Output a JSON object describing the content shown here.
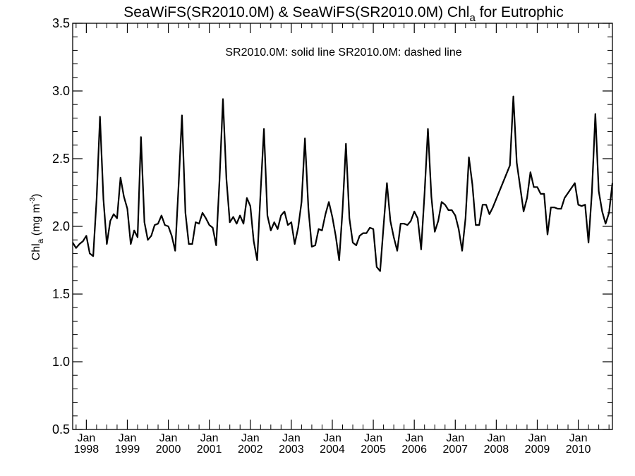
{
  "chart_data": {
    "type": "line",
    "title": "SeaWiFS(SR2010.0M) & SeaWiFS(SR2010.0M)  Chl",
    "title_subscript": "a",
    "title_suffix": " for Eutrophic",
    "legend_text": "SR2010.0M: solid line   SR2010.0M: dashed line",
    "ylabel": "Chl",
    "ylabel_subscript": "a",
    "ylabel_unit": " (mg m",
    "ylabel_unit_sup": "-3",
    "ylabel_unit_end": ")",
    "ylim": [
      0.5,
      3.5
    ],
    "yticks": [
      "0.5",
      "1.0",
      "1.5",
      "2.0",
      "2.5",
      "3.0",
      "3.5"
    ],
    "xlim": [
      "1997-09",
      "2010-11"
    ],
    "xticks": [
      {
        "month": "Jan",
        "year": "1998"
      },
      {
        "month": "Jan",
        "year": "1999"
      },
      {
        "month": "Jan",
        "year": "2000"
      },
      {
        "month": "Jan",
        "year": "2001"
      },
      {
        "month": "Jan",
        "year": "2002"
      },
      {
        "month": "Jan",
        "year": "2003"
      },
      {
        "month": "Jan",
        "year": "2004"
      },
      {
        "month": "Jan",
        "year": "2005"
      },
      {
        "month": "Jan",
        "year": "2006"
      },
      {
        "month": "Jan",
        "year": "2007"
      },
      {
        "month": "Jan",
        "year": "2008"
      },
      {
        "month": "Jan",
        "year": "2009"
      },
      {
        "month": "Jan",
        "year": "2010"
      }
    ],
    "grid": false,
    "series": [
      {
        "name": "SR2010.0M",
        "style": "solid",
        "x": [
          "1997-09",
          "1997-10",
          "1997-11",
          "1997-12",
          "1998-01",
          "1998-02",
          "1998-03",
          "1998-04",
          "1998-05",
          "1998-06",
          "1998-07",
          "1998-08",
          "1998-09",
          "1998-10",
          "1998-11",
          "1998-12",
          "1999-01",
          "1999-02",
          "1999-03",
          "1999-04",
          "1999-05",
          "1999-06",
          "1999-07",
          "1999-08",
          "1999-09",
          "1999-10",
          "1999-11",
          "1999-12",
          "2000-01",
          "2000-02",
          "2000-03",
          "2000-04",
          "2000-05",
          "2000-06",
          "2000-07",
          "2000-08",
          "2000-09",
          "2000-10",
          "2000-11",
          "2000-12",
          "2001-01",
          "2001-02",
          "2001-03",
          "2001-04",
          "2001-05",
          "2001-06",
          "2001-07",
          "2001-08",
          "2001-09",
          "2001-10",
          "2001-11",
          "2001-12",
          "2002-01",
          "2002-02",
          "2002-03",
          "2002-04",
          "2002-05",
          "2002-06",
          "2002-07",
          "2002-08",
          "2002-09",
          "2002-10",
          "2002-11",
          "2002-12",
          "2003-01",
          "2003-02",
          "2003-03",
          "2003-04",
          "2003-05",
          "2003-06",
          "2003-07",
          "2003-08",
          "2003-09",
          "2003-10",
          "2003-11",
          "2003-12",
          "2004-01",
          "2004-02",
          "2004-03",
          "2004-04",
          "2004-05",
          "2004-06",
          "2004-07",
          "2004-08",
          "2004-09",
          "2004-10",
          "2004-11",
          "2004-12",
          "2005-01",
          "2005-02",
          "2005-03",
          "2005-04",
          "2005-05",
          "2005-06",
          "2005-07",
          "2005-08",
          "2005-09",
          "2005-10",
          "2005-11",
          "2005-12",
          "2006-01",
          "2006-02",
          "2006-03",
          "2006-04",
          "2006-05",
          "2006-06",
          "2006-07",
          "2006-08",
          "2006-09",
          "2006-10",
          "2006-11",
          "2006-12",
          "2007-01",
          "2007-02",
          "2007-03",
          "2007-04",
          "2007-05",
          "2007-06",
          "2007-07",
          "2007-08",
          "2007-09",
          "2007-10",
          "2007-11",
          "2007-12",
          "2008-05",
          "2008-06",
          "2008-07",
          "2008-08",
          "2008-09",
          "2008-10",
          "2008-11",
          "2008-12",
          "2009-01",
          "2009-02",
          "2009-03",
          "2009-04",
          "2009-05",
          "2009-06",
          "2009-07",
          "2009-08",
          "2009-09",
          "2009-12",
          "2010-01",
          "2010-02",
          "2010-03",
          "2010-04",
          "2010-05",
          "2010-06",
          "2010-07",
          "2010-08",
          "2010-09",
          "2010-10",
          "2010-11"
        ],
        "y": [
          1.88,
          1.84,
          1.87,
          1.89,
          1.93,
          1.8,
          1.78,
          2.2,
          2.81,
          2.2,
          1.87,
          2.04,
          2.09,
          2.06,
          2.36,
          2.22,
          2.13,
          1.87,
          1.97,
          1.92,
          2.66,
          2.03,
          1.9,
          1.93,
          2.01,
          2.02,
          2.08,
          2.01,
          2.0,
          1.93,
          1.82,
          2.3,
          2.82,
          2.1,
          1.87,
          1.87,
          2.03,
          2.02,
          2.1,
          2.06,
          2.01,
          1.99,
          1.86,
          2.35,
          2.94,
          2.35,
          2.03,
          2.07,
          2.02,
          2.08,
          2.02,
          2.21,
          2.15,
          1.89,
          1.75,
          2.25,
          2.72,
          2.08,
          1.97,
          2.03,
          1.98,
          2.08,
          2.11,
          2.01,
          2.03,
          1.87,
          1.99,
          2.18,
          2.65,
          2.13,
          1.85,
          1.86,
          1.98,
          1.97,
          2.09,
          2.18,
          2.07,
          1.93,
          1.75,
          2.12,
          2.61,
          2.06,
          1.88,
          1.86,
          1.93,
          1.95,
          1.95,
          1.99,
          1.98,
          1.7,
          1.67,
          2.0,
          2.32,
          2.04,
          1.92,
          1.82,
          2.02,
          2.02,
          2.01,
          2.04,
          2.11,
          2.06,
          1.83,
          2.24,
          2.72,
          2.22,
          1.96,
          2.04,
          2.18,
          2.16,
          2.12,
          2.12,
          2.08,
          1.98,
          1.82,
          2.06,
          2.51,
          2.31,
          2.01,
          2.01,
          2.16,
          2.16,
          2.09,
          2.14,
          2.45,
          2.96,
          2.47,
          2.29,
          2.11,
          2.21,
          2.4,
          2.29,
          2.29,
          2.24,
          2.24,
          1.94,
          2.14,
          2.14,
          2.13,
          2.13,
          2.21,
          2.32,
          2.16,
          2.15,
          2.16,
          1.88,
          2.25,
          2.83,
          2.26,
          2.11,
          2.02,
          2.1,
          2.32
        ]
      }
    ]
  }
}
